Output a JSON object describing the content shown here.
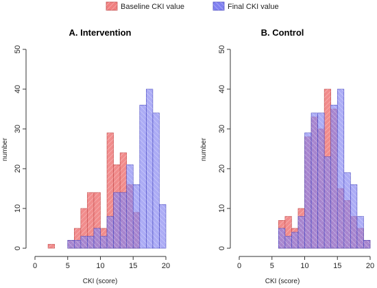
{
  "legend": {
    "baseline_label": "Baseline CKI value",
    "final_label": "Final CKI value"
  },
  "colors": {
    "baseline": "#f08080",
    "final": "#8080f0",
    "overlap": "#9b2f8e"
  },
  "chart_data": [
    {
      "type": "histogram",
      "title": "A. Intervention",
      "xlabel": "CKI (score)",
      "ylabel": "number",
      "xlim": [
        0,
        20
      ],
      "ylim": [
        0,
        50
      ],
      "x_ticks": [
        0,
        5,
        10,
        15,
        20
      ],
      "y_ticks": [
        0,
        10,
        20,
        30,
        40,
        50
      ],
      "bin_edges": [
        2,
        3,
        4,
        5,
        6,
        7,
        8,
        9,
        10,
        11,
        12,
        13,
        14,
        15,
        16,
        17,
        18,
        19,
        20
      ],
      "series": [
        {
          "name": "Baseline CKI value",
          "values": [
            1,
            0,
            0,
            2,
            5,
            10,
            14,
            14,
            5,
            29,
            21,
            24,
            16,
            9,
            0,
            0,
            0,
            0
          ]
        },
        {
          "name": "Final CKI value",
          "values": [
            0,
            0,
            0,
            2,
            2,
            3,
            3,
            5,
            3,
            8,
            14,
            14,
            21,
            16,
            36,
            40,
            34,
            11
          ]
        }
      ]
    },
    {
      "type": "histogram",
      "title": "B. Control",
      "xlabel": "CKI (score)",
      "ylabel": "number",
      "xlim": [
        0,
        20
      ],
      "ylim": [
        0,
        50
      ],
      "x_ticks": [
        0,
        5,
        10,
        15,
        20
      ],
      "y_ticks": [
        0,
        10,
        20,
        30,
        40,
        50
      ],
      "bin_edges": [
        2,
        3,
        4,
        5,
        6,
        7,
        8,
        9,
        10,
        11,
        12,
        13,
        14,
        15,
        16,
        17,
        18,
        19,
        20
      ],
      "series": [
        {
          "name": "Baseline CKI value",
          "values": [
            0,
            0,
            0,
            0,
            7,
            8,
            5,
            10,
            28,
            33,
            30,
            40,
            35,
            15,
            12,
            8,
            5,
            2
          ]
        },
        {
          "name": "Final CKI value",
          "values": [
            0,
            0,
            0,
            0,
            5,
            3,
            4,
            8,
            29,
            34,
            34,
            23,
            36,
            40,
            19,
            16,
            8,
            2
          ]
        }
      ]
    }
  ]
}
